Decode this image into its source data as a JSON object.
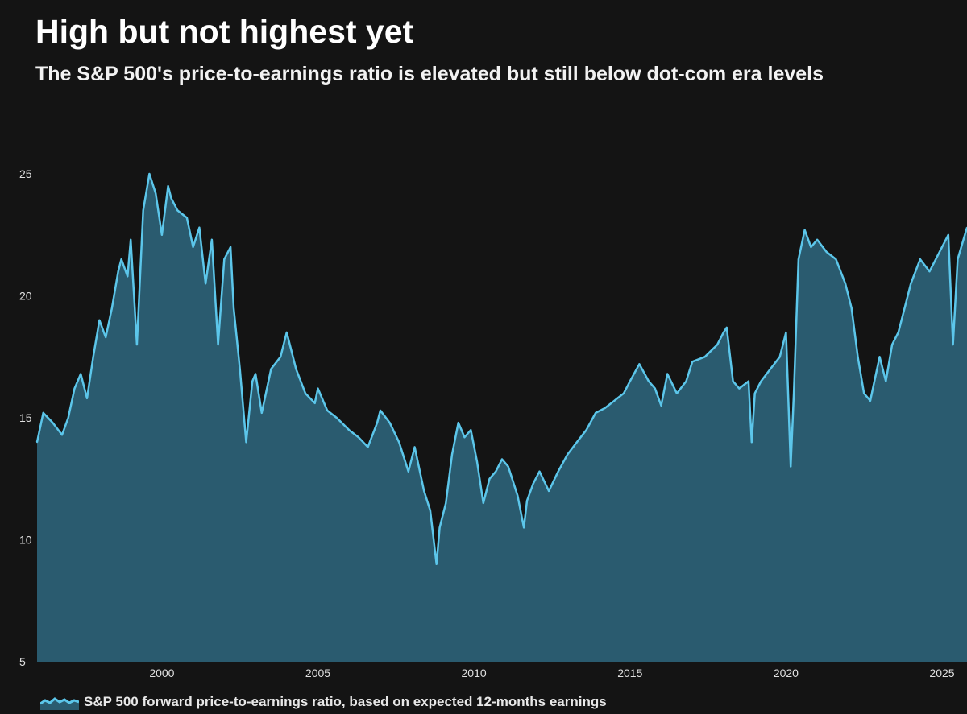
{
  "title": "High but not highest yet",
  "subtitle": "The S&P 500's price-to-earnings ratio is elevated but still below dot-com era levels",
  "colors": {
    "background": "#141414",
    "area_fill": "#2a5b6f",
    "line": "#5cc6ea"
  },
  "chart_data": {
    "type": "area",
    "title": "High but not highest yet",
    "subtitle": "The S&P 500's price-to-earnings ratio is elevated but still below dot-com era levels",
    "xlabel": "",
    "ylabel": "",
    "xlim": [
      1996.0,
      2025.8
    ],
    "ylim": [
      5,
      25
    ],
    "x_ticks": [
      2000,
      2005,
      2010,
      2015,
      2020,
      2025
    ],
    "x_tick_labels": [
      "2000",
      "2005",
      "2010",
      "2015",
      "2020",
      "2025"
    ],
    "y_ticks": [
      5,
      10,
      15,
      20,
      25
    ],
    "y_tick_labels": [
      "5",
      "10",
      "15",
      "20",
      "25"
    ],
    "grid": false,
    "legend_position": "bottom-left",
    "series": [
      {
        "name": "S&P 500 forward price-to-earnings ratio, based on expected 12-months earnings",
        "x": [
          1996.0,
          1996.2,
          1996.5,
          1996.8,
          1997.0,
          1997.2,
          1997.4,
          1997.6,
          1997.8,
          1998.0,
          1998.2,
          1998.4,
          1998.6,
          1998.7,
          1998.9,
          1999.0,
          1999.2,
          1999.4,
          1999.6,
          1999.8,
          2000.0,
          2000.2,
          2000.3,
          2000.5,
          2000.8,
          2001.0,
          2001.2,
          2001.4,
          2001.6,
          2001.8,
          2002.0,
          2002.2,
          2002.3,
          2002.5,
          2002.7,
          2002.9,
          2003.0,
          2003.2,
          2003.5,
          2003.8,
          2004.0,
          2004.3,
          2004.6,
          2004.9,
          2005.0,
          2005.3,
          2005.6,
          2006.0,
          2006.3,
          2006.6,
          2006.9,
          2007.0,
          2007.3,
          2007.6,
          2007.9,
          2008.1,
          2008.4,
          2008.6,
          2008.8,
          2008.9,
          2009.1,
          2009.3,
          2009.5,
          2009.7,
          2009.9,
          2010.1,
          2010.3,
          2010.5,
          2010.7,
          2010.9,
          2011.1,
          2011.4,
          2011.6,
          2011.7,
          2011.9,
          2012.1,
          2012.4,
          2012.7,
          2013.0,
          2013.3,
          2013.6,
          2013.9,
          2014.2,
          2014.5,
          2014.8,
          2015.0,
          2015.3,
          2015.6,
          2015.8,
          2016.0,
          2016.2,
          2016.5,
          2016.8,
          2017.0,
          2017.4,
          2017.8,
          2018.0,
          2018.1,
          2018.3,
          2018.5,
          2018.8,
          2018.9,
          2019.0,
          2019.2,
          2019.5,
          2019.8,
          2020.0,
          2020.15,
          2020.25,
          2020.4,
          2020.6,
          2020.8,
          2021.0,
          2021.3,
          2021.6,
          2021.9,
          2022.1,
          2022.3,
          2022.5,
          2022.7,
          2022.8,
          2023.0,
          2023.2,
          2023.4,
          2023.6,
          2023.8,
          2024.0,
          2024.3,
          2024.6,
          2024.8,
          2025.0,
          2025.2,
          2025.35,
          2025.5,
          2025.8
        ],
        "values": [
          14.0,
          15.2,
          14.8,
          14.3,
          15.0,
          16.2,
          16.8,
          15.8,
          17.5,
          19.0,
          18.3,
          19.5,
          21.0,
          21.5,
          20.8,
          22.3,
          18.0,
          23.5,
          25.0,
          24.2,
          22.5,
          24.5,
          24.0,
          23.5,
          23.2,
          22.0,
          22.8,
          20.5,
          22.3,
          18.0,
          21.5,
          22.0,
          19.5,
          17.0,
          14.0,
          16.5,
          16.8,
          15.2,
          17.0,
          17.5,
          18.5,
          17.0,
          16.0,
          15.6,
          16.2,
          15.3,
          15.0,
          14.5,
          14.2,
          13.8,
          14.8,
          15.3,
          14.8,
          14.0,
          12.8,
          13.8,
          12.0,
          11.2,
          9.0,
          10.5,
          11.5,
          13.5,
          14.8,
          14.2,
          14.5,
          13.2,
          11.5,
          12.5,
          12.8,
          13.3,
          13.0,
          11.8,
          10.5,
          11.6,
          12.3,
          12.8,
          12.0,
          12.8,
          13.5,
          14.0,
          14.5,
          15.2,
          15.4,
          15.7,
          16.0,
          16.5,
          17.2,
          16.5,
          16.2,
          15.5,
          16.8,
          16.0,
          16.5,
          17.3,
          17.5,
          18.0,
          18.5,
          18.7,
          16.5,
          16.2,
          16.5,
          14.0,
          16.0,
          16.5,
          17.0,
          17.5,
          18.5,
          13.0,
          16.0,
          21.5,
          22.7,
          22.0,
          22.3,
          21.8,
          21.5,
          20.5,
          19.5,
          17.5,
          16.0,
          15.7,
          16.3,
          17.5,
          16.5,
          18.0,
          18.5,
          19.5,
          20.5,
          21.5,
          21.0,
          21.5,
          22.0,
          22.5,
          18.0,
          21.5,
          22.8
        ]
      }
    ]
  },
  "legend": {
    "label": "S&P 500 forward price-to-earnings ratio, based on expected 12-months earnings"
  }
}
